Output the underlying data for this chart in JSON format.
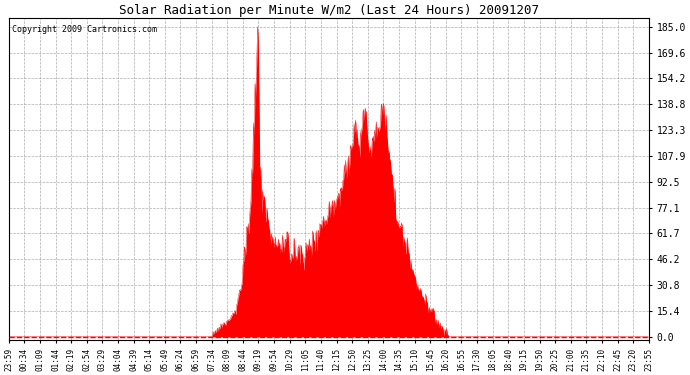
{
  "title": "Solar Radiation per Minute W/m2 (Last 24 Hours) 20091207",
  "copyright": "Copyright 2009 Cartronics.com",
  "fill_color": "#FF0000",
  "line_color": "#FF0000",
  "background_color": "#FFFFFF",
  "grid_color": "#999999",
  "dashed_line_color": "#FF0000",
  "y_ticks": [
    0.0,
    15.4,
    30.8,
    46.2,
    61.7,
    77.1,
    92.5,
    107.9,
    123.3,
    138.8,
    154.2,
    169.6,
    185.0
  ],
  "ylim": [
    -2,
    190
  ],
  "x_tick_labels": [
    "23:59",
    "00:34",
    "01:09",
    "01:44",
    "02:19",
    "02:54",
    "03:29",
    "04:04",
    "04:39",
    "05:14",
    "05:49",
    "06:24",
    "06:59",
    "07:34",
    "08:09",
    "08:44",
    "09:19",
    "09:54",
    "10:29",
    "11:05",
    "11:40",
    "12:15",
    "12:50",
    "13:25",
    "14:00",
    "14:35",
    "15:10",
    "15:45",
    "16:20",
    "16:55",
    "17:30",
    "18:05",
    "18:40",
    "19:15",
    "19:50",
    "20:25",
    "21:00",
    "21:35",
    "22:10",
    "22:45",
    "23:20",
    "23:55"
  ]
}
